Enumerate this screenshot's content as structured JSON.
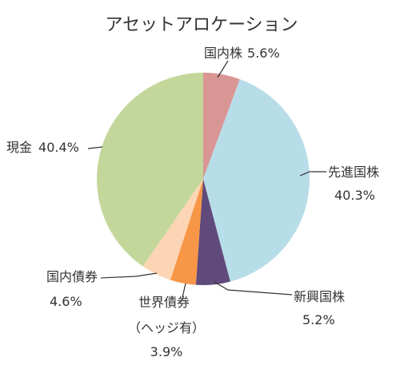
{
  "chart_data": {
    "type": "pie",
    "title": "アセットアロケーション",
    "start_angle_deg": 0,
    "direction": "clockwise",
    "slices": [
      {
        "name": "国内株",
        "value": 5.6,
        "label": "5.6%",
        "color": "#d99695"
      },
      {
        "name": "先進国株",
        "value": 40.3,
        "label": "40.3%",
        "color": "#b7dde8"
      },
      {
        "name": "新興国株",
        "value": 5.2,
        "label": "5.2%",
        "color": "#604a7b"
      },
      {
        "name": "世界債券",
        "name_line2": "（ヘッジ有）",
        "value": 3.9,
        "label": "3.9%",
        "color": "#f79646"
      },
      {
        "name": "国内債券",
        "value": 4.6,
        "label": "4.6%",
        "color": "#fcd5b5"
      },
      {
        "name": "現金",
        "value": 40.4,
        "label": "40.4%",
        "color": "#c4d79b"
      }
    ]
  }
}
